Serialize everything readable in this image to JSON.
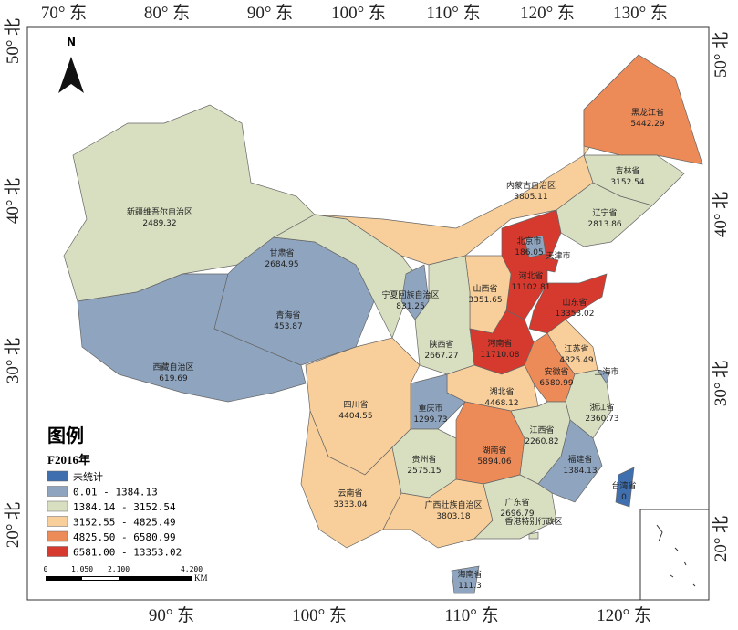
{
  "north_label": "N",
  "graticule": {
    "top": [
      "70° 东",
      "80° 东",
      "90° 东",
      "100° 东",
      "110° 东",
      "120° 东",
      "130° 东"
    ],
    "bottom": [
      "90° 东",
      "100° 东",
      "110° 东",
      "120° 东"
    ],
    "left": [
      "50° 北",
      "40° 北",
      "30° 北",
      "20° 北"
    ],
    "right": [
      "50° 北",
      "40° 北",
      "30° 北",
      "20° 北"
    ]
  },
  "provinces": [
    {
      "name": "新疆维吾尔自治区",
      "value": "2489.32",
      "color": "#d8dfc0"
    },
    {
      "name": "西藏自治区",
      "value": "619.69",
      "color": "#8fa5bf"
    },
    {
      "name": "青海省",
      "value": "453.87",
      "color": "#8fa5bf"
    },
    {
      "name": "甘肃省",
      "value": "2684.95",
      "color": "#d8dfc0"
    },
    {
      "name": "内蒙古自治区",
      "value": "3805.11",
      "color": "#f8cf9a"
    },
    {
      "name": "黑龙江省",
      "value": "5442.29",
      "color": "#ec8a58"
    },
    {
      "name": "吉林省",
      "value": "3152.54",
      "color": "#d8dfc0"
    },
    {
      "name": "辽宁省",
      "value": "2813.86",
      "color": "#d8dfc0"
    },
    {
      "name": "河北省",
      "value": "11102.81",
      "color": "#d6392e"
    },
    {
      "name": "北京市",
      "value": "186.05",
      "color": "#8fa5bf"
    },
    {
      "name": "天津市",
      "color": "#d6392e"
    },
    {
      "name": "山西省",
      "value": "3351.65",
      "color": "#f8cf9a"
    },
    {
      "name": "山东省",
      "value": "13353.02",
      "color": "#d6392e"
    },
    {
      "name": "宁夏回族自治区",
      "value": "831.25",
      "color": "#8fa5bf"
    },
    {
      "name": "陕西省",
      "value": "2667.27",
      "color": "#d8dfc0"
    },
    {
      "name": "河南省",
      "value": "11710.08",
      "color": "#d6392e"
    },
    {
      "name": "江苏省",
      "value": "4825.49",
      "color": "#f8cf9a"
    },
    {
      "name": "安徽省",
      "value": "6580.99",
      "color": "#ec8a58"
    },
    {
      "name": "上海市",
      "color": "#8fa5bf"
    },
    {
      "name": "浙江省",
      "value": "2360.73",
      "color": "#d8dfc0"
    },
    {
      "name": "湖北省",
      "value": "4468.12",
      "color": "#f8cf9a"
    },
    {
      "name": "重庆市",
      "value": "1299.73",
      "color": "#8fa5bf"
    },
    {
      "name": "四川省",
      "value": "4404.55",
      "color": "#f8cf9a"
    },
    {
      "name": "云南省",
      "value": "3333.04",
      "color": "#f8cf9a"
    },
    {
      "name": "贵州省",
      "value": "2575.15",
      "color": "#d8dfc0"
    },
    {
      "name": "湖南省",
      "value": "5894.06",
      "color": "#ec8a58"
    },
    {
      "name": "江西省",
      "value": "2260.82",
      "color": "#d8dfc0"
    },
    {
      "name": "福建省",
      "value": "1384.13",
      "color": "#8fa5bf"
    },
    {
      "name": "广西壮族自治区",
      "value": "3803.18",
      "color": "#f8cf9a"
    },
    {
      "name": "广东省",
      "value": "2696.79",
      "color": "#d8dfc0"
    },
    {
      "name": "台湾省",
      "value": "0",
      "color": "#3f6fae"
    },
    {
      "name": "海南省",
      "value": "111.3",
      "color": "#8fa5bf"
    },
    {
      "name": "香港特别行政区",
      "color": "#d8dfc0"
    }
  ],
  "legend": {
    "title": "图例",
    "field": "F2016年",
    "entries": [
      {
        "label": "未统计",
        "color": "#3f6fae"
      },
      {
        "label": "0.01 - 1384.13",
        "color": "#8fa5bf"
      },
      {
        "label": "1384.14 - 3152.54",
        "color": "#d8dfc0"
      },
      {
        "label": "3152.55 - 4825.49",
        "color": "#f8cf9a"
      },
      {
        "label": "4825.50 - 6580.99",
        "color": "#ec8a58"
      },
      {
        "label": "6581.00 - 13353.02",
        "color": "#d6392e"
      }
    ]
  },
  "scale_bar": {
    "labels": [
      "0",
      "1,050",
      "2,100",
      "4,200"
    ],
    "unit": "KM"
  }
}
